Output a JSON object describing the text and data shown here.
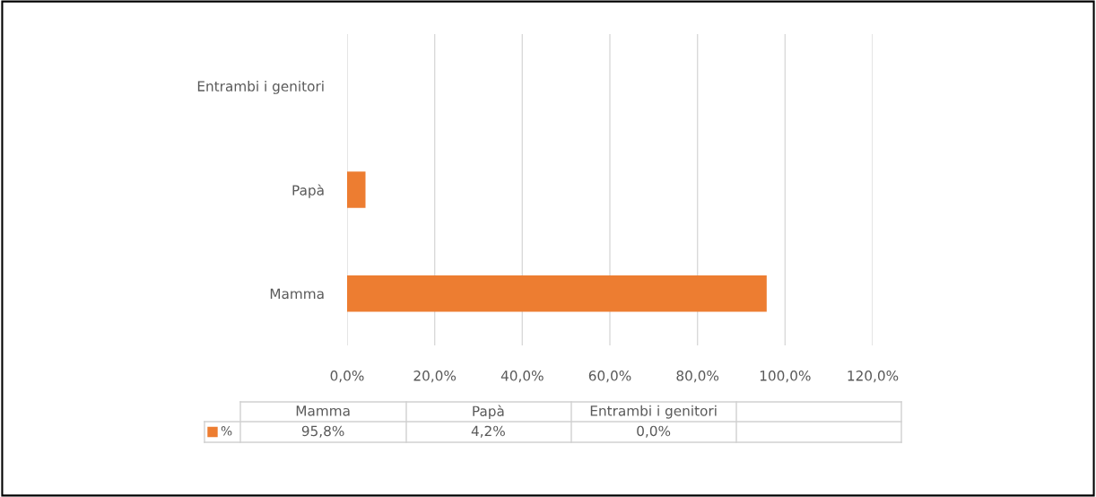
{
  "chart_data": {
    "type": "bar",
    "orientation": "horizontal",
    "categories": [
      "Entrambi i genitori",
      "Papà",
      "Mamma"
    ],
    "series": [
      {
        "name": "%",
        "color": "#ed7d31",
        "values": [
          0.0,
          4.2,
          95.8
        ]
      }
    ],
    "annotations": [
      "95,8%",
      "4,2%",
      "0,0%"
    ],
    "xlim": [
      0,
      120
    ],
    "xticks": [
      {
        "value": 0,
        "label": "0,0%"
      },
      {
        "value": 20,
        "label": "20,0%"
      },
      {
        "value": 40,
        "label": "40,0%"
      },
      {
        "value": 60,
        "label": "60,0%"
      },
      {
        "value": 80,
        "label": "80,0%"
      },
      {
        "value": 100,
        "label": "100,0%"
      },
      {
        "value": 120,
        "label": "120,0%"
      }
    ],
    "grid": "x"
  }
}
